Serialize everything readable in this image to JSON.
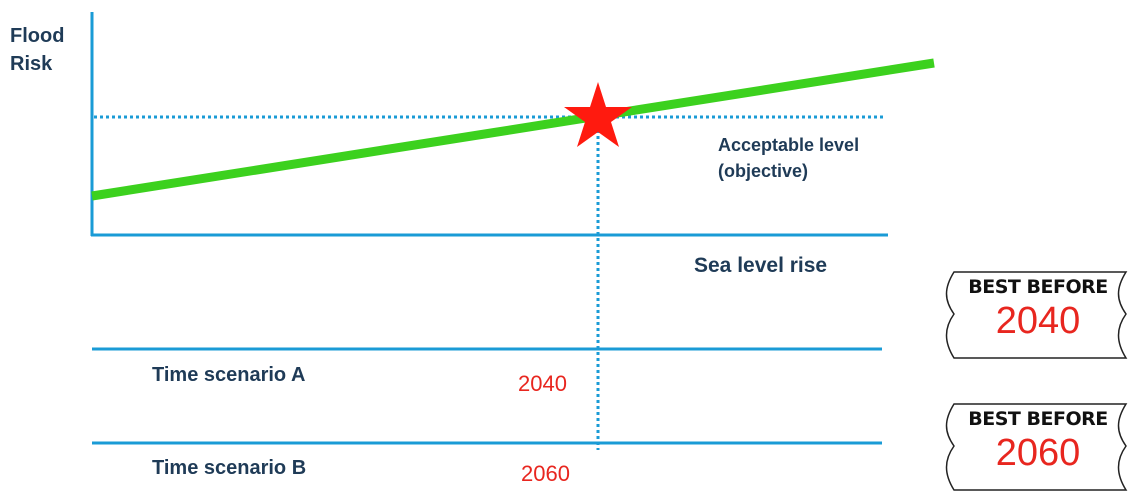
{
  "diagram": {
    "y_axis_label": "Flood Risk",
    "x_axis_label": "Sea level rise",
    "threshold_label": "Acceptable level (objective)",
    "scenarios": [
      {
        "label": "Time scenario A",
        "year": "2040"
      },
      {
        "label": "Time scenario B",
        "year": "2060"
      }
    ],
    "tags": [
      {
        "title": "BEST BEFORE",
        "year": "2040"
      },
      {
        "title": "BEST BEFORE",
        "year": "2060"
      }
    ],
    "colors": {
      "axis": "#1a9bd6",
      "risk_line": "#3cd11e",
      "star": "#ff1a0f",
      "text": "#1f3b57",
      "year": "#e8261f"
    },
    "icons": [
      "star-icon"
    ]
  }
}
